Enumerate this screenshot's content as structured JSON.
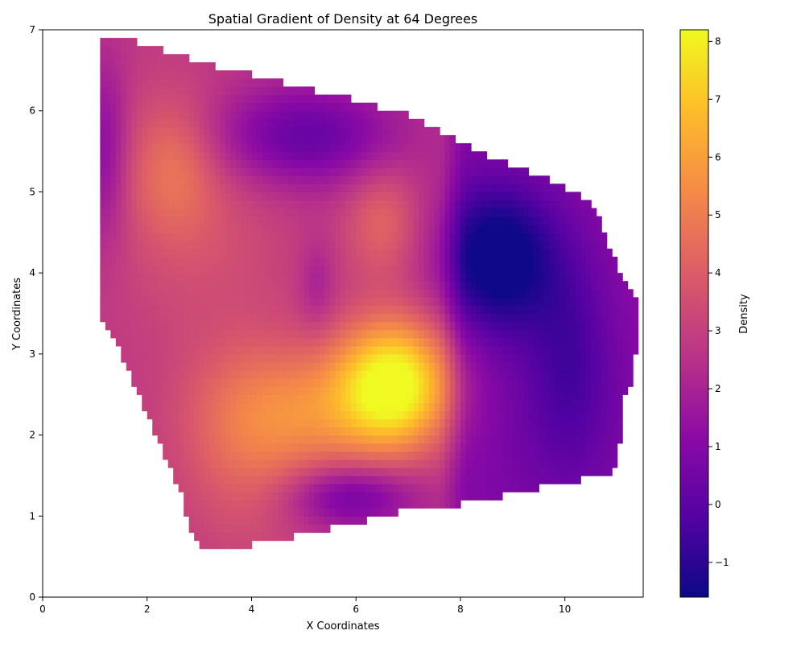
{
  "chart_data": {
    "type": "heatmap",
    "title": "Spatial Gradient of Density at 64 Degrees",
    "xlabel": "X Coordinates",
    "ylabel": "Y Coordinates",
    "xlim": [
      0,
      11.5
    ],
    "ylim": [
      0,
      7
    ],
    "xticks": [
      0,
      2,
      4,
      6,
      8,
      10
    ],
    "yticks": [
      0,
      1,
      2,
      3,
      4,
      5,
      6,
      7
    ],
    "colorbar": {
      "label": "Density",
      "range": [
        -1.6,
        8.2
      ],
      "ticks": [
        -1,
        0,
        1,
        2,
        3,
        4,
        5,
        6,
        7,
        8
      ],
      "colormap": [
        "#0d0887",
        "#5302a3",
        "#8b0aa5",
        "#b83289",
        "#db5c68",
        "#f48849",
        "#febd2a",
        "#f0f921"
      ]
    },
    "region_boundary": [
      [
        1.05,
        6.93
      ],
      [
        1.4,
        6.93
      ],
      [
        2.0,
        6.8
      ],
      [
        3.0,
        6.6
      ],
      [
        4.0,
        6.45
      ],
      [
        5.0,
        6.28
      ],
      [
        6.0,
        6.13
      ],
      [
        7.0,
        5.95
      ],
      [
        8.0,
        5.6
      ],
      [
        8.7,
        5.4
      ],
      [
        9.5,
        5.2
      ],
      [
        10.0,
        5.05
      ],
      [
        10.5,
        4.9
      ],
      [
        10.6,
        4.75
      ],
      [
        10.8,
        4.35
      ],
      [
        11.0,
        4.1
      ],
      [
        11.15,
        3.85
      ],
      [
        11.3,
        3.75
      ],
      [
        11.42,
        3.6
      ],
      [
        11.42,
        3.05
      ],
      [
        11.3,
        2.95
      ],
      [
        11.3,
        2.6
      ],
      [
        11.1,
        2.5
      ],
      [
        11.1,
        2.1
      ],
      [
        11.05,
        1.95
      ],
      [
        10.95,
        1.75
      ],
      [
        10.95,
        1.6
      ],
      [
        10.85,
        1.5
      ],
      [
        10.5,
        1.48
      ],
      [
        10.3,
        1.45
      ],
      [
        9.8,
        1.42
      ],
      [
        9.5,
        1.35
      ],
      [
        9.0,
        1.28
      ],
      [
        8.5,
        1.22
      ],
      [
        8.0,
        1.15
      ],
      [
        7.5,
        1.12
      ],
      [
        7.0,
        1.08
      ],
      [
        6.5,
        1.0
      ],
      [
        6.0,
        0.92
      ],
      [
        5.5,
        0.85
      ],
      [
        5.0,
        0.78
      ],
      [
        4.5,
        0.72
      ],
      [
        4.0,
        0.65
      ],
      [
        3.5,
        0.6
      ],
      [
        3.05,
        0.57
      ],
      [
        2.9,
        0.7
      ],
      [
        2.8,
        0.9
      ],
      [
        2.7,
        1.2
      ],
      [
        2.5,
        1.5
      ],
      [
        2.3,
        1.8
      ],
      [
        2.1,
        2.1
      ],
      [
        1.9,
        2.4
      ],
      [
        1.7,
        2.7
      ],
      [
        1.5,
        3.0
      ],
      [
        1.3,
        3.25
      ],
      [
        1.05,
        3.47
      ]
    ],
    "features": [
      {
        "kind": "peak",
        "x": 6.8,
        "y": 2.6,
        "value": 8.0
      },
      {
        "kind": "peak",
        "x": 2.5,
        "y": 5.35,
        "value": 5.4
      },
      {
        "kind": "peak",
        "x": 6.5,
        "y": 4.65,
        "value": 4.6
      },
      {
        "kind": "peak",
        "x": 4.5,
        "y": 2.0,
        "value": 4.6
      },
      {
        "kind": "peak",
        "x": 3.2,
        "y": 1.5,
        "value": 4.3
      },
      {
        "kind": "trough",
        "x": 8.7,
        "y": 4.2,
        "value": -1.0
      },
      {
        "kind": "trough",
        "x": 5.0,
        "y": 5.7,
        "value": 0.3
      },
      {
        "kind": "trough",
        "x": 6.0,
        "y": 1.25,
        "value": 0.3
      },
      {
        "kind": "trough",
        "x": 10.1,
        "y": 3.0,
        "value": 0.5
      },
      {
        "kind": "trough",
        "x": 5.25,
        "y": 3.85,
        "value": 1.6
      }
    ]
  }
}
